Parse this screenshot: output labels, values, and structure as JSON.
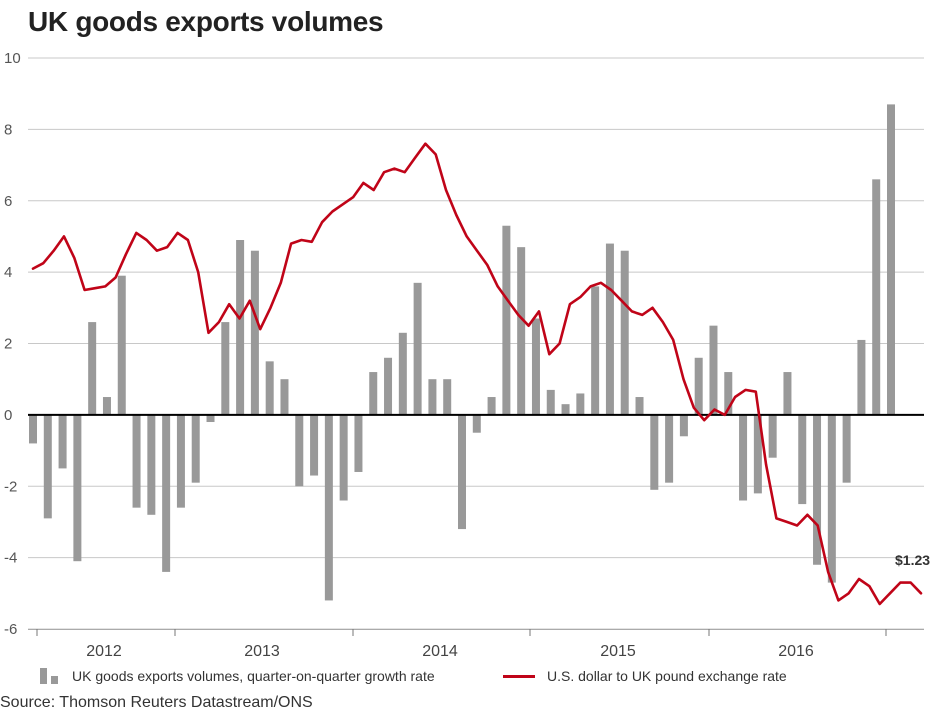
{
  "title": "UK goods exports volumes",
  "source": "Source: Thomson Reuters Datastream/ONS",
  "legend": {
    "bars_label": "UK goods exports volumes, quarter-on-quarter growth rate",
    "line_label": "U.S. dollar to UK pound exchange rate"
  },
  "colors": {
    "bars": "#999999",
    "line": "#c00418",
    "zero_line": "#000000",
    "grid": "#c8c8c8"
  },
  "chart_data": {
    "type": "bar",
    "title": "UK goods exports volumes",
    "ylim": [
      -6,
      10
    ],
    "y_ticks": [
      "10",
      "8",
      "6",
      "4",
      "2",
      "0",
      "-2",
      "-4",
      "-6"
    ],
    "x_tick_labels": [
      "2012",
      "2013",
      "2014",
      "2015",
      "2016"
    ],
    "grid": "horizontal",
    "legend_position": "bottom",
    "end_label": "$1.23",
    "series": [
      {
        "name": "UK goods exports volumes, quarter-on-quarter growth rate",
        "type": "bar",
        "values": [
          -0.8,
          -2.9,
          -1.5,
          -4.1,
          2.6,
          0.5,
          3.9,
          -2.6,
          -2.8,
          -4.4,
          -2.6,
          -1.9,
          -0.2,
          2.6,
          4.9,
          4.6,
          1.5,
          1.0,
          -2.0,
          -1.7,
          -5.2,
          -2.4,
          -1.6,
          1.2,
          1.6,
          2.3,
          3.7,
          1.0,
          1.0,
          -3.2,
          -0.5,
          0.5,
          5.3,
          4.7,
          2.7,
          0.7,
          0.3,
          0.6,
          3.6,
          4.8,
          4.6,
          0.5,
          -2.1,
          -1.9,
          -0.6,
          1.6,
          2.5,
          1.2,
          -2.4,
          -2.2,
          -1.2,
          1.2,
          -2.5,
          -4.2,
          -4.7,
          -1.9,
          2.1,
          6.6,
          8.7
        ]
      },
      {
        "name": "U.S. dollar to UK pound exchange rate",
        "type": "line",
        "values": [
          4.1,
          4.25,
          4.6,
          5.0,
          4.4,
          3.5,
          3.55,
          3.6,
          3.85,
          4.5,
          5.1,
          4.9,
          4.6,
          4.7,
          5.1,
          4.9,
          4.0,
          2.3,
          2.6,
          3.1,
          2.7,
          3.2,
          2.4,
          3.0,
          3.7,
          4.8,
          4.9,
          4.85,
          5.4,
          5.7,
          5.9,
          6.1,
          6.5,
          6.3,
          6.8,
          6.9,
          6.8,
          7.2,
          7.6,
          7.3,
          6.3,
          5.6,
          5.0,
          4.6,
          4.2,
          3.6,
          3.2,
          2.8,
          2.5,
          2.9,
          1.7,
          2.0,
          3.1,
          3.3,
          3.6,
          3.7,
          3.5,
          3.2,
          2.9,
          2.8,
          3.0,
          2.6,
          2.1,
          1.0,
          0.2,
          -0.15,
          0.15,
          0.0,
          0.5,
          0.7,
          0.65,
          -1.4,
          -2.9,
          -3.0,
          -3.1,
          -2.8,
          -3.1,
          -4.4,
          -5.2,
          -5.0,
          -4.6,
          -4.8,
          -5.3,
          -5.0,
          -4.7,
          -4.7,
          -5.0
        ]
      }
    ]
  }
}
